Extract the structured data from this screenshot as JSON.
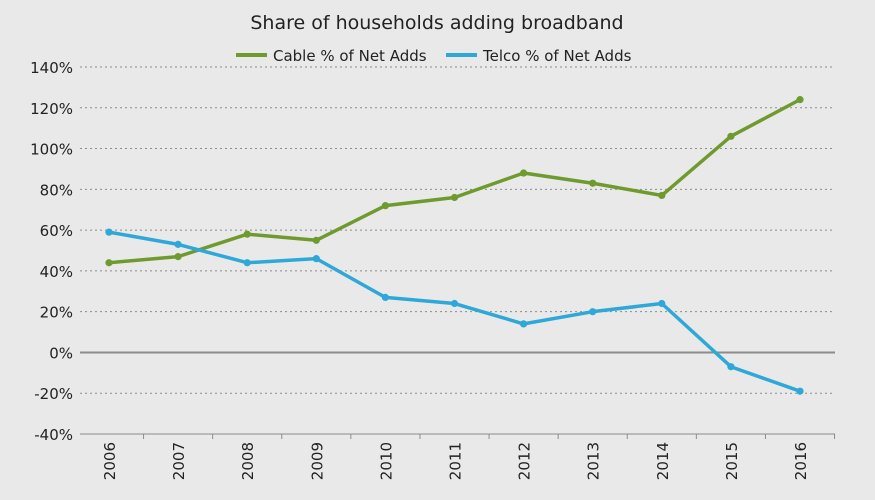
{
  "chart_data": {
    "type": "line",
    "title": "Share of households adding broadband",
    "xlabel": "",
    "ylabel": "",
    "categories": [
      "2006",
      "2007",
      "2008",
      "2009",
      "2010",
      "2011",
      "2012",
      "2013",
      "2014",
      "2015",
      "2016"
    ],
    "y_ticks": [
      "140%",
      "120%",
      "100%",
      "80%",
      "60%",
      "40%",
      "20%",
      "0%",
      "-20%",
      "-40%"
    ],
    "ylim": [
      -40,
      140
    ],
    "grid": true,
    "legend_position": "top-center",
    "series": [
      {
        "name": "Cable % of Net Adds",
        "color": "#6f9a2e",
        "values": [
          44,
          47,
          58,
          55,
          72,
          76,
          88,
          83,
          77,
          106,
          124
        ]
      },
      {
        "name": "Telco % of Net Adds",
        "color": "#2ea8d9",
        "values": [
          59,
          53,
          44,
          46,
          27,
          24,
          14,
          20,
          24,
          -7,
          -19
        ]
      }
    ]
  }
}
